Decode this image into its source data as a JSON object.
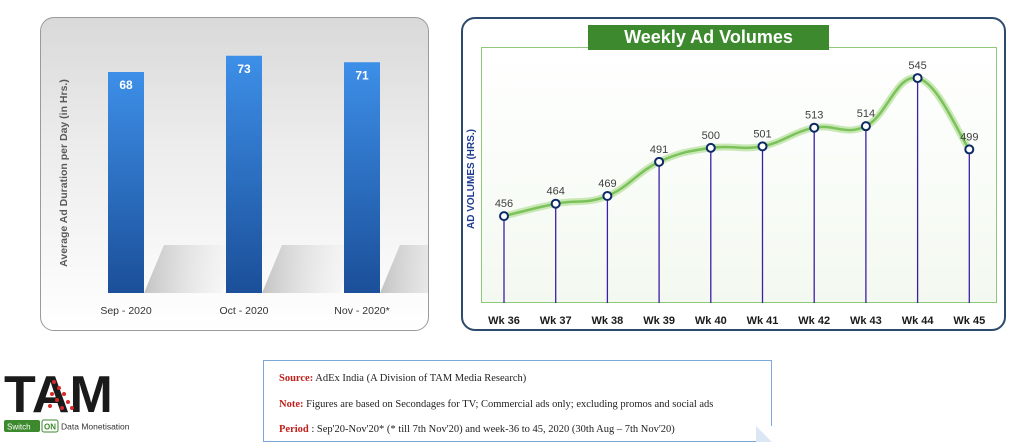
{
  "chart_data": [
    {
      "type": "bar",
      "title": "",
      "xlabel": "",
      "ylabel": "Average Ad Duration per Day (in Hrs.)",
      "categories": [
        "Sep - 2020",
        "Oct - 2020",
        "Nov - 2020*"
      ],
      "values": [
        68,
        73,
        71
      ],
      "data_labels": [
        "68",
        "73",
        "71"
      ],
      "ylim": [
        0,
        80
      ],
      "grid": false,
      "legend": "none",
      "colors": {
        "bar_top": "#3d8fe8",
        "bar_bottom": "#1b4f99"
      }
    },
    {
      "type": "line",
      "title": "Weekly Ad Volumes",
      "xlabel": "",
      "ylabel": "AD VOLUMES (HRS.)",
      "categories": [
        "Wk 36",
        "Wk 37",
        "Wk 38",
        "Wk 39",
        "Wk 40",
        "Wk 41",
        "Wk 42",
        "Wk 43",
        "Wk 44",
        "Wk 45"
      ],
      "values": [
        456,
        464,
        469,
        491,
        500,
        501,
        513,
        514,
        545,
        499
      ],
      "data_labels": [
        "456",
        "464",
        "469",
        "491",
        "500",
        "501",
        "513",
        "514",
        "545",
        "499"
      ],
      "ylim": [
        400,
        556
      ],
      "grid": false,
      "legend": "none",
      "colors": {
        "line": "#7cc25a",
        "marker": "#0e2a66",
        "drop_line": "#3b1fa8",
        "title_bg": "#3d8a2e"
      }
    }
  ],
  "source_box": {
    "source_key": "Source:",
    "source_text": " AdEx India (A Division of TAM Media Research)",
    "note_key": "Note:",
    "note_text": " Figures are based on Secondages for TV; Commercial ads only; excluding promos and social ads",
    "period_key": "Period",
    "period_text": " : Sep'20-Nov'20* (* till 7th Nov'20) and week-36 to 45, 2020 (30th Aug – 7th Nov'20)"
  },
  "logo": {
    "brand": "TAM",
    "tag_switch": "Switch",
    "tag_on": "ON",
    "tag_text": "Data Monetisation"
  }
}
